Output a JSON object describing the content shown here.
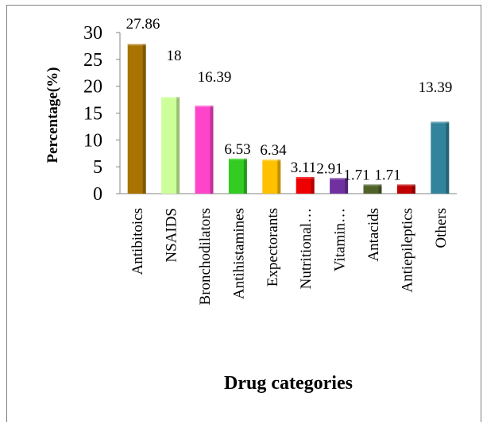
{
  "chart_data": {
    "type": "bar",
    "xlabel": "Drug categories",
    "ylabel": "Percentage(%)",
    "ylim": [
      0,
      30
    ],
    "yticks": [
      "0",
      "5",
      "10",
      "15",
      "20",
      "25",
      "30"
    ],
    "categories": [
      "Antibitoics",
      "NSAIDS",
      "Bronchodilators",
      "Antihistamines",
      "Expectorants",
      "Nutritional…",
      "Vitamin…",
      "Antacids",
      "Antiepileptics",
      "Others"
    ],
    "values": [
      27.86,
      18,
      16.39,
      6.53,
      6.34,
      3.11,
      2.91,
      1.71,
      1.71,
      13.39
    ],
    "value_labels": [
      "27.86",
      "18",
      "16.39",
      "6.53",
      "6.34",
      "3.11",
      "2.91",
      "1.71",
      "1.71",
      "13.39"
    ],
    "colors": [
      "#a87300",
      "#ccff99",
      "#ff44cc",
      "#33cc22",
      "#ffc000",
      "#ee0000",
      "#7030a0",
      "#4f6228",
      "#c00000",
      "#31849b"
    ],
    "grid": false,
    "legend": "none"
  }
}
